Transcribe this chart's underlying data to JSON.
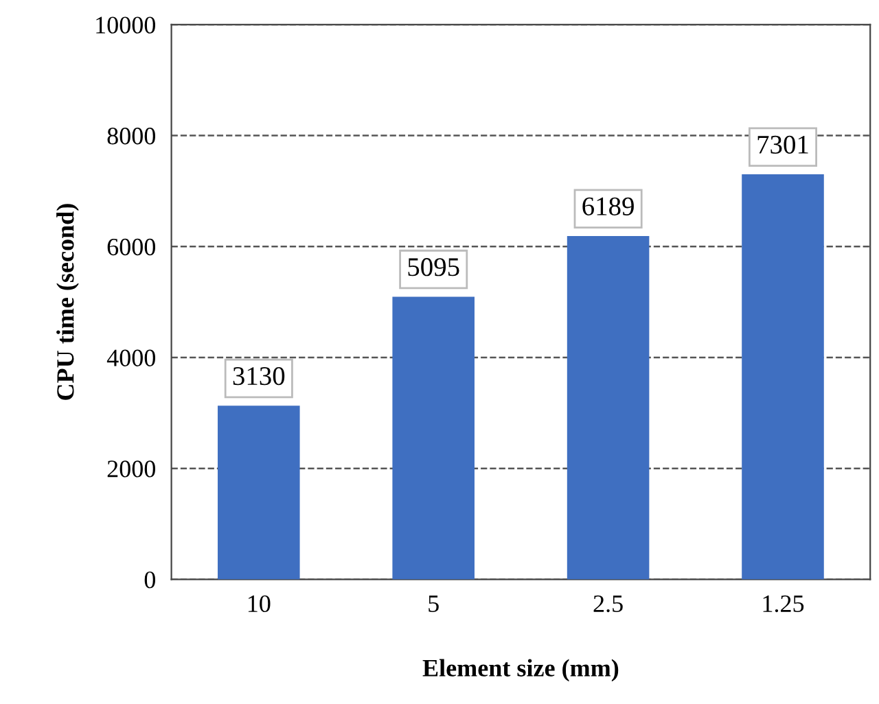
{
  "chart_data": {
    "type": "bar",
    "xlabel": "Element size (mm)",
    "ylabel": "CPU time (second)",
    "categories": [
      "10",
      "5",
      "2.5",
      "1.25"
    ],
    "values": [
      3130,
      5095,
      6189,
      7301
    ],
    "color": "#3f6fc1",
    "ylim": [
      0,
      10000
    ],
    "yticks": [
      0,
      2000,
      4000,
      6000,
      8000,
      10000
    ],
    "grid": "y",
    "data_labels": true
  }
}
